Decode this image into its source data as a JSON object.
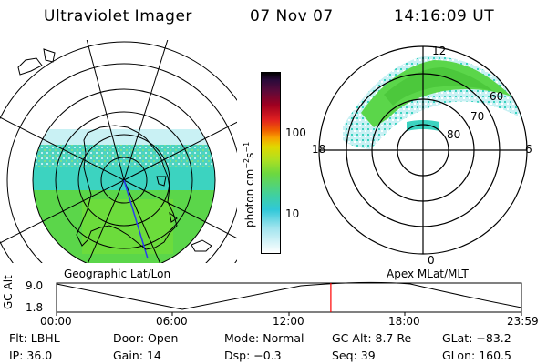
{
  "header": {
    "title": "Ultraviolet Imager",
    "date": "07 Nov 07",
    "time": "14:16:09 UT"
  },
  "colorbar": {
    "label_main": "photon cm",
    "label_exp1": "−2",
    "label_mid": "s",
    "label_exp2": "−1",
    "ticks": [
      "100",
      "10"
    ]
  },
  "left_panel": {
    "caption": "Geographic Lat/Lon"
  },
  "right_panel": {
    "caption": "Apex MLat/MLT",
    "mlt_labels": {
      "top": "12",
      "left": "18",
      "right": "6",
      "bottom": "0"
    },
    "lat_labels": [
      "60",
      "70",
      "80"
    ]
  },
  "altitude_plot": {
    "ylabel": "GC Alt",
    "yticks": [
      "9.0",
      "1.8"
    ],
    "xticks": [
      "00:00",
      "06:00",
      "12:00",
      "18:00",
      "23:59"
    ],
    "current_time_fraction": 0.59
  },
  "info": {
    "rows": [
      [
        {
          "k": "Flt:",
          "v": "LBHL"
        },
        {
          "k": "Door:",
          "v": "Open"
        },
        {
          "k": "Mode:",
          "v": "Normal"
        },
        {
          "k": "GC Alt:",
          "v": "8.7 Re"
        },
        {
          "k": "GLat:",
          "v": "−83.2"
        }
      ],
      [
        {
          "k": "IP:",
          "v": "36.0"
        },
        {
          "k": "Gain:",
          "v": "14"
        },
        {
          "k": "Dsp:",
          "v": "−0.3"
        },
        {
          "k": "Seq:",
          "v": "39"
        },
        {
          "k": "GLon:",
          "v": "160.5"
        }
      ]
    ]
  },
  "colors": {
    "accent_line": "#ff0000",
    "low_emission": "#22d0c8",
    "mid_emission": "#5cd84a",
    "high_emission": "#a6e624"
  }
}
